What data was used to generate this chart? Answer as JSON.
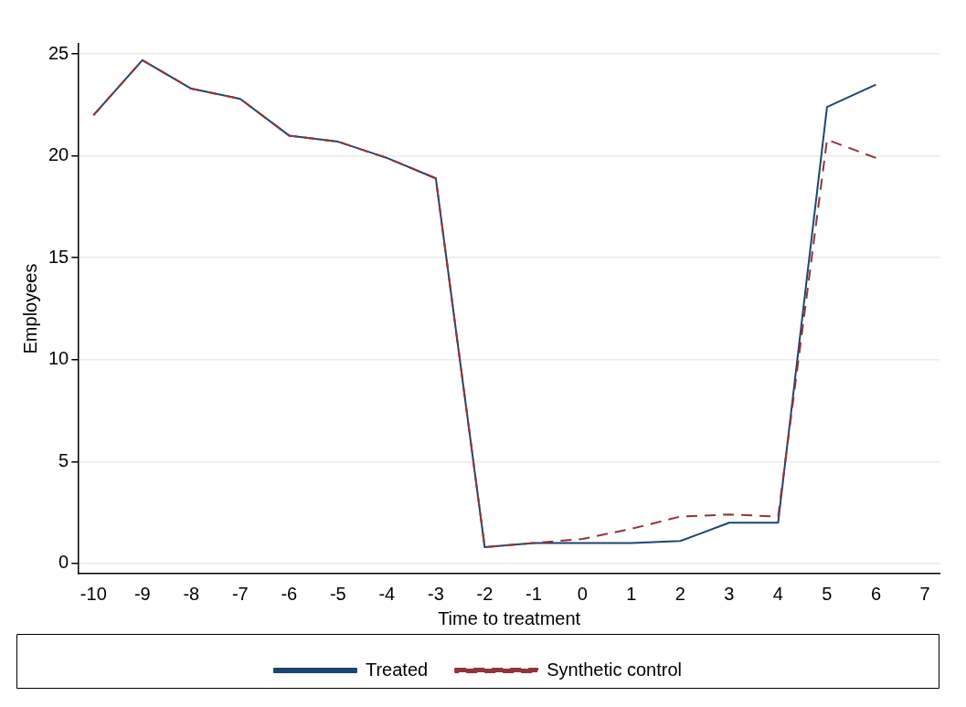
{
  "chart_data": {
    "type": "line",
    "xlabel": "Time to treatment",
    "ylabel": "Employees",
    "x": [
      -10,
      -9,
      -8,
      -7,
      -6,
      -5,
      -4,
      -3,
      -2,
      -1,
      0,
      1,
      2,
      3,
      4,
      5,
      6
    ],
    "series": [
      {
        "name": "Treated",
        "color": "#1a476f",
        "line_style": "solid",
        "values": [
          22.0,
          24.7,
          23.3,
          22.8,
          21.0,
          20.7,
          19.9,
          18.9,
          0.8,
          1.0,
          1.0,
          1.0,
          1.1,
          2.0,
          2.0,
          22.4,
          23.5
        ]
      },
      {
        "name": "Synthetic control",
        "color": "#90353b",
        "line_style": "dashed",
        "values": [
          22.0,
          24.7,
          23.3,
          22.8,
          21.0,
          20.7,
          19.9,
          18.9,
          0.8,
          1.0,
          1.2,
          1.7,
          2.3,
          2.4,
          2.3,
          20.8,
          19.9
        ]
      }
    ],
    "xlim": [
      -10.3,
      7.3
    ],
    "xticks": [
      -10,
      -9,
      -8,
      -7,
      -6,
      -5,
      -4,
      -3,
      -2,
      -1,
      0,
      1,
      2,
      3,
      4,
      5,
      6,
      7
    ],
    "ylim": [
      -0.5,
      25.5
    ],
    "yticks": [
      0,
      5,
      10,
      15,
      20,
      25
    ],
    "grid": "y",
    "legend": "bottom",
    "marker": "none"
  }
}
